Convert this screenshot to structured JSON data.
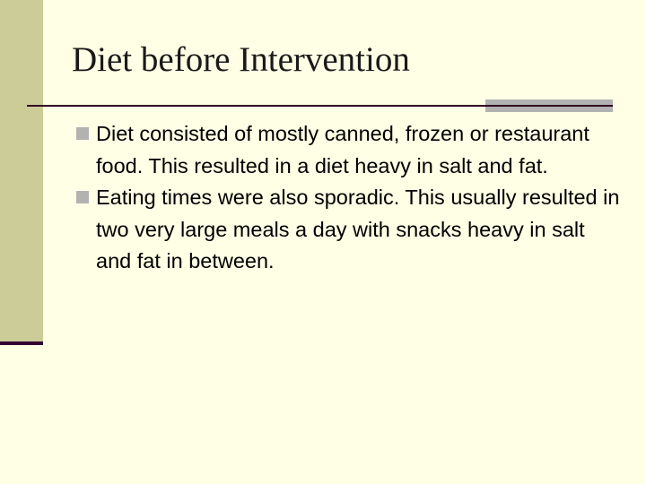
{
  "slide": {
    "title": "Diet before Intervention",
    "bullets": [
      "Diet consisted of mostly canned, frozen or restaurant food.  This resulted in a diet heavy in salt and fat.",
      "Eating times were also sporadic.  This usually resulted in two very large meals a day with snacks heavy in salt and fat in between."
    ],
    "colors": {
      "background": "#ffffe5",
      "sidebar": "#cccc99",
      "accent_dark": "#330033",
      "bullet": "#b2b2b2"
    }
  }
}
